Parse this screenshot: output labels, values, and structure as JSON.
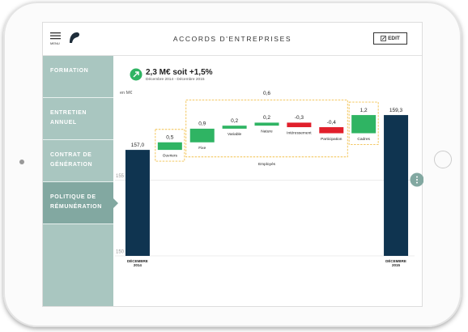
{
  "app": {
    "menu_label": "MENU",
    "title": "ACCORDS D'ENTREPRISES",
    "edit_button": "EDIT",
    "sidebar": [
      "FORMATION",
      "ENTRETIEN ANNUEL",
      "CONTRAT DE GÉNÉRATION",
      "POLITIQUE DE RÉMUNÉRATION"
    ],
    "active_item": 3,
    "summary": "2,3 M€ soit +1,5%",
    "period": "Décembre 2014 - Décembre 2015"
  },
  "chart_data": {
    "type": "waterfall",
    "y_label": "en M€",
    "categories": [
      "DÉCEMBRE 2014",
      "Ouvriers",
      "Fixe",
      "Variable",
      "Nature",
      "Intéressement",
      "Participation",
      "Cadres",
      "DÉCEMBRE 2015"
    ],
    "measure": [
      "absolute",
      "relative",
      "relative",
      "relative",
      "relative",
      "relative",
      "relative",
      "relative",
      "absolute"
    ],
    "values": [
      157.0,
      0.5,
      0.9,
      0.2,
      0.2,
      -0.3,
      -0.4,
      1.2,
      159.3
    ],
    "value_labels": [
      "157,0",
      "0,5",
      "0,9",
      "0,2",
      "0,2",
      "-0,3",
      "-0,4",
      "1,2",
      "159,3"
    ],
    "colors": {
      "total": "#0f3450",
      "increase": "#2fb463",
      "decrease": "#e11f2b"
    },
    "groups": [
      {
        "name": "Employés",
        "value": 0.6,
        "value_label": "0,6",
        "categories_range": [
          2,
          6
        ]
      }
    ],
    "ylim": [
      150,
      160
    ],
    "yticks": [
      150,
      155
    ],
    "grid": true
  }
}
